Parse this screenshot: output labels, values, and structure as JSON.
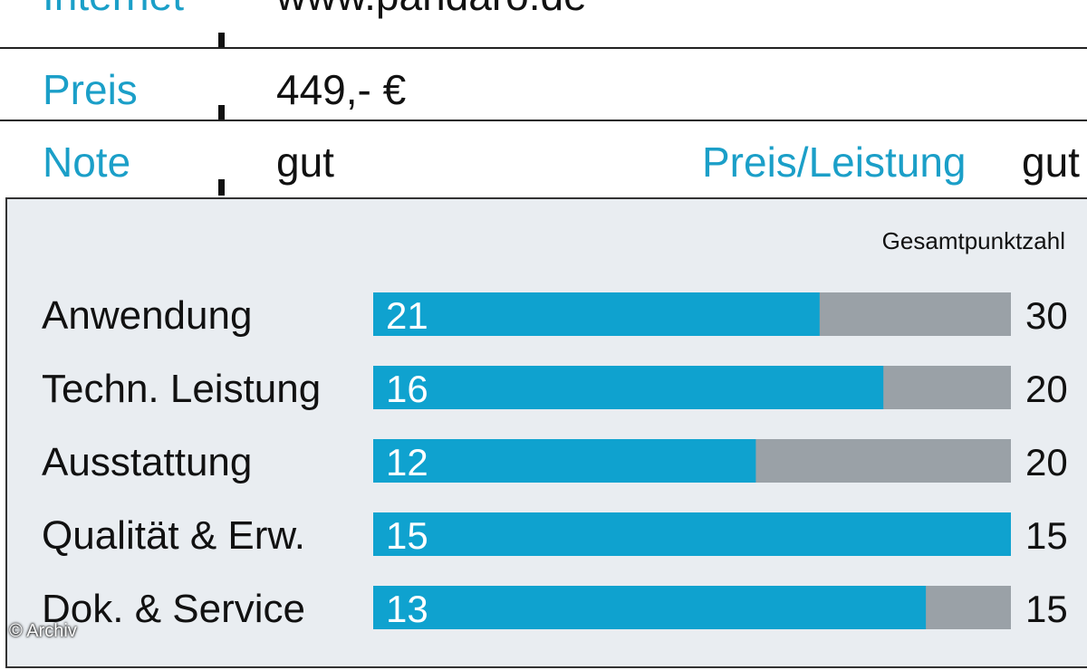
{
  "colors": {
    "accent": "#1b9fc8",
    "bar_fill": "#0fa2cf",
    "bar_track": "#9aa1a7",
    "text": "#111111"
  },
  "info": {
    "internet_label": "Internet",
    "internet_value": "www.pandaro.de",
    "preis_label": "Preis",
    "preis_value": "449,- €",
    "note_label": "Note",
    "note_value": "gut",
    "pl_label": "Preis/Leistung",
    "pl_value": "gut"
  },
  "credit": "© Archiv",
  "chart_data": {
    "type": "bar",
    "orientation": "horizontal",
    "title": "Gesamtpunktzahl",
    "categories": [
      "Anwendung",
      "Techn. Leistung",
      "Ausstattung",
      "Qualität & Erw.",
      "Dok. & Service"
    ],
    "values": [
      21,
      16,
      12,
      15,
      13
    ],
    "max_values": [
      30,
      20,
      20,
      15,
      15
    ],
    "value_labels": [
      "21",
      "16",
      "12",
      "15",
      "13"
    ],
    "max_labels": [
      "30",
      "20",
      "20",
      "15",
      "15"
    ]
  }
}
